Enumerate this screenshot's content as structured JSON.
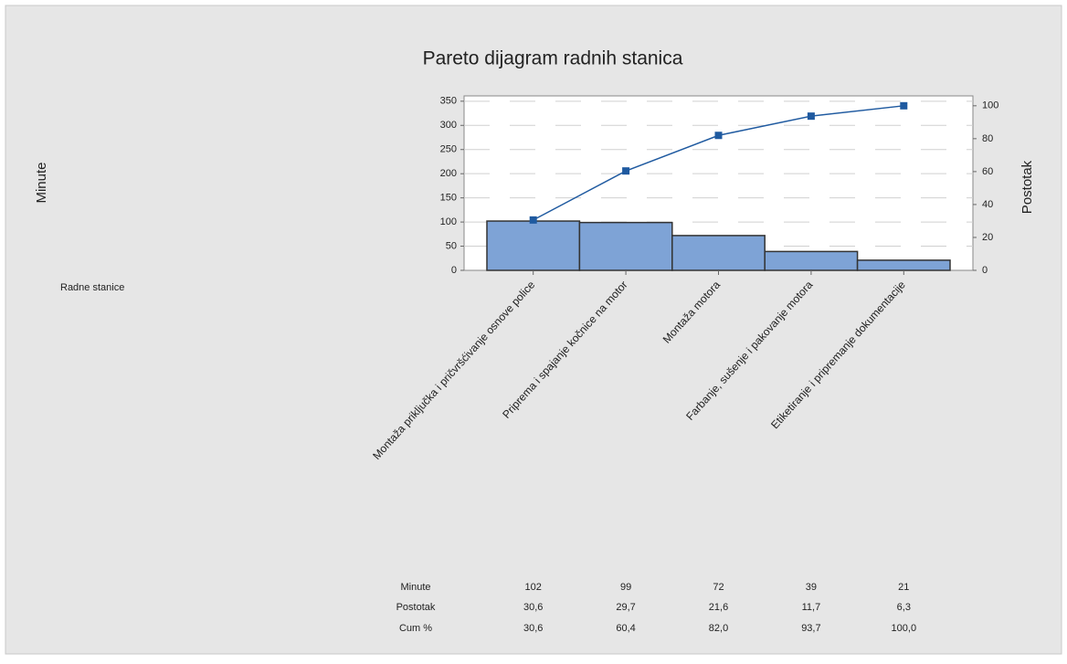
{
  "chart_data": {
    "type": "pareto",
    "title": "Pareto dijagram radnih stanica",
    "y_label": "Minute",
    "y2_label": "Postotak",
    "x_label": "Radne stanice",
    "categories": [
      "Montaža priključka i pričvršćivanje osnove police",
      "Priprema i spajanje kočnice na motor",
      "Montaža motora",
      "Farbanje, sušenje i pakovanje motora",
      "Etiketiranje i pripremanje dokumentacije"
    ],
    "series": [
      {
        "name": "Minute",
        "color": "#7ea3d6",
        "values": [
          102,
          99,
          72,
          39,
          21
        ]
      },
      {
        "name": "Postotak",
        "values": [
          30.6,
          29.7,
          21.6,
          11.7,
          6.3
        ],
        "value_labels": [
          "30,6",
          "29,7",
          "21,6",
          "11,7",
          "6,3"
        ]
      },
      {
        "name": "Cum %",
        "color": "#1f5aa0",
        "axis": "y2",
        "values": [
          30.6,
          60.4,
          82.0,
          93.7,
          100.0
        ],
        "value_labels": [
          "30,6",
          "60,4",
          "82,0",
          "93,7",
          "100,0"
        ]
      }
    ],
    "ylim": [
      0,
      361
    ],
    "yticks": [
      0,
      50,
      100,
      150,
      200,
      250,
      300,
      350
    ],
    "y2lim": [
      0,
      106
    ],
    "y2ticks": [
      0,
      20,
      40,
      60,
      80,
      100
    ],
    "grid": true
  }
}
